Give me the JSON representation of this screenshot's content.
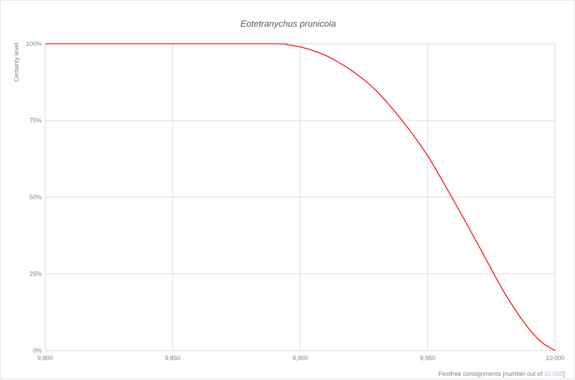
{
  "chart_data": {
    "type": "line",
    "title": "Eotetranychus prunicola",
    "xlabel": "Pestfree consignments [number out of ",
    "xlabel_highlight": "10,000",
    "xlabel_suffix": "]",
    "ylabel": "Certainty level",
    "xlim": [
      9800,
      10000
    ],
    "ylim": [
      0,
      1
    ],
    "x_ticks": [
      9800,
      9850,
      9900,
      9950,
      10000
    ],
    "x_tick_labels": [
      "9,800",
      "9,850",
      "9,900",
      "9,950",
      "10,000"
    ],
    "y_ticks": [
      0,
      0.25,
      0.5,
      0.75,
      1
    ],
    "y_tick_labels": [
      "0%",
      "25%",
      "50%",
      "75%",
      "100%"
    ],
    "grid": true,
    "legend": "none",
    "series": [
      {
        "color": "#ff0000",
        "x": [
          9800,
          9850,
          9890,
          9895,
          9900,
          9905,
          9910,
          9915,
          9920,
          9925,
          9930,
          9935,
          9940,
          9945,
          9950,
          9955,
          9960,
          9965,
          9970,
          9975,
          9980,
          9985,
          9990,
          9995,
          10000
        ],
        "y": [
          1.0,
          1.0,
          1.0,
          0.997,
          0.99,
          0.978,
          0.962,
          0.94,
          0.914,
          0.883,
          0.846,
          0.8,
          0.75,
          0.695,
          0.635,
          0.565,
          0.492,
          0.418,
          0.342,
          0.265,
          0.19,
          0.125,
          0.068,
          0.025,
          0.0
        ]
      }
    ]
  }
}
